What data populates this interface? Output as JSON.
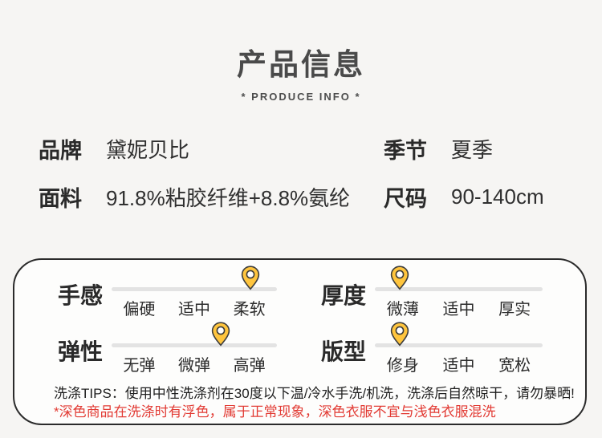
{
  "header": {
    "title": "产品信息",
    "subtitle": "* PRODUCE INFO *"
  },
  "specs": [
    {
      "label": "品牌",
      "value": "黛妮贝比"
    },
    {
      "label": "季节",
      "value": "夏季"
    },
    {
      "label": "面料",
      "value": "91.8%粘胶纤维+8.8%氨纶"
    },
    {
      "label": "尺码",
      "value": "90-140cm"
    }
  ],
  "scales": [
    {
      "label": "手感",
      "options": [
        "偏硬",
        "适中",
        "柔软"
      ],
      "pin_percent": 84
    },
    {
      "label": "厚度",
      "options": [
        "微薄",
        "适中",
        "厚实"
      ],
      "pin_percent": 15
    },
    {
      "label": "弹性",
      "options": [
        "无弹",
        "微弹",
        "高弹"
      ],
      "pin_percent": 66
    },
    {
      "label": "版型",
      "options": [
        "修身",
        "适中",
        "宽松"
      ],
      "pin_percent": 15
    }
  ],
  "care": {
    "tips": "洗涤TIPS：使用中性洗涤剂在30度以下温/冷水手洗/机洗，洗涤后自然晾干，请勿暴晒!",
    "warning": "*深色商品在洗涤时有浮色，属于正常现象，深色衣服不宜与浅色衣服混洗"
  },
  "colors": {
    "page_bg": "#f6f5f3",
    "panel_bg": "#fdfdfc",
    "panel_border": "#2b2b2b",
    "title_text": "#4a4a4a",
    "body_text": "#2d2d2d",
    "track_gray": "#e3e3e3",
    "pin_fill": "#ffc53e",
    "pin_stroke": "#3c3c3c",
    "warning_red": "#e23b34"
  }
}
